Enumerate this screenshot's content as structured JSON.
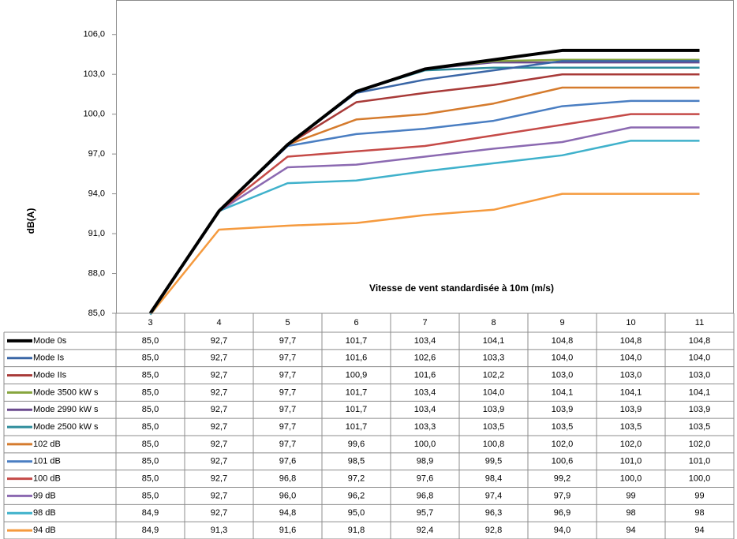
{
  "chart_data": {
    "type": "line",
    "y_label": "dB(A)",
    "x_label": "Vitesse de vent  standardisée à 10m (m/s)",
    "categories": [
      "3",
      "4",
      "5",
      "6",
      "7",
      "8",
      "9",
      "10",
      "11"
    ],
    "ylim": [
      85,
      108.6
    ],
    "yticks": [
      {
        "value": 85,
        "label": "85,0"
      },
      {
        "value": 88,
        "label": "88,0"
      },
      {
        "value": 91,
        "label": "91,0"
      },
      {
        "value": 94,
        "label": "94,0"
      },
      {
        "value": 97,
        "label": "97,0"
      },
      {
        "value": 100,
        "label": "100,0"
      },
      {
        "value": 103,
        "label": "103,0"
      },
      {
        "value": 106,
        "label": "106,0"
      }
    ],
    "grid": false,
    "series": [
      {
        "name": "Mode 0s",
        "color": "#000000",
        "values": [
          85.0,
          92.7,
          97.7,
          101.7,
          103.4,
          104.1,
          104.8,
          104.8,
          104.8
        ],
        "value_labels": [
          "85,0",
          "92,7",
          "97,7",
          "101,7",
          "103,4",
          "104,1",
          "104,8",
          "104,8",
          "104,8"
        ]
      },
      {
        "name": "Mode Is",
        "color": "#3a66a6",
        "values": [
          85.0,
          92.7,
          97.7,
          101.6,
          102.6,
          103.3,
          104.0,
          104.0,
          104.0
        ],
        "value_labels": [
          "85,0",
          "92,7",
          "97,7",
          "101,6",
          "102,6",
          "103,3",
          "104,0",
          "104,0",
          "104,0"
        ]
      },
      {
        "name": "Mode IIs",
        "color": "#a83a38",
        "values": [
          85.0,
          92.7,
          97.7,
          100.9,
          101.6,
          102.2,
          103.0,
          103.0,
          103.0
        ],
        "value_labels": [
          "85,0",
          "92,7",
          "97,7",
          "100,9",
          "101,6",
          "102,2",
          "103,0",
          "103,0",
          "103,0"
        ]
      },
      {
        "name": "Mode 3500 kW s",
        "color": "#86a53d",
        "values": [
          85.0,
          92.7,
          97.7,
          101.7,
          103.4,
          104.0,
          104.1,
          104.1,
          104.1
        ],
        "value_labels": [
          "85,0",
          "92,7",
          "97,7",
          "101,7",
          "103,4",
          "104,0",
          "104,1",
          "104,1",
          "104,1"
        ]
      },
      {
        "name": "Mode 2990 kW s",
        "color": "#6b4b8e",
        "values": [
          85.0,
          92.7,
          97.7,
          101.7,
          103.4,
          103.9,
          103.9,
          103.9,
          103.9
        ],
        "value_labels": [
          "85,0",
          "92,7",
          "97,7",
          "101,7",
          "103,4",
          "103,9",
          "103,9",
          "103,9",
          "103,9"
        ]
      },
      {
        "name": "Mode 2500 kW s",
        "color": "#2f8d9c",
        "values": [
          85.0,
          92.7,
          97.7,
          101.7,
          103.3,
          103.5,
          103.5,
          103.5,
          103.5
        ],
        "value_labels": [
          "85,0",
          "92,7",
          "97,7",
          "101,7",
          "103,3",
          "103,5",
          "103,5",
          "103,5",
          "103,5"
        ]
      },
      {
        "name": "102 dB",
        "color": "#d57b2d",
        "values": [
          85.0,
          92.7,
          97.7,
          99.6,
          100.0,
          100.8,
          102.0,
          102.0,
          102.0
        ],
        "value_labels": [
          "85,0",
          "92,7",
          "97,7",
          "99,6",
          "100,0",
          "100,8",
          "102,0",
          "102,0",
          "102,0"
        ]
      },
      {
        "name": "101 dB",
        "color": "#4a7ec2",
        "values": [
          85.0,
          92.7,
          97.6,
          98.5,
          98.9,
          99.5,
          100.6,
          101.0,
          101.0
        ],
        "value_labels": [
          "85,0",
          "92,7",
          "97,6",
          "98,5",
          "98,9",
          "99,5",
          "100,6",
          "101,0",
          "101,0"
        ]
      },
      {
        "name": "100 dB",
        "color": "#c54a47",
        "values": [
          85.0,
          92.7,
          96.8,
          97.2,
          97.6,
          98.4,
          99.2,
          100.0,
          100.0
        ],
        "value_labels": [
          "85,0",
          "92,7",
          "96,8",
          "97,2",
          "97,6",
          "98,4",
          "99,2",
          "100,0",
          "100,0"
        ]
      },
      {
        "name": "99 dB",
        "color": "#8b69b1",
        "values": [
          85.0,
          92.7,
          96.0,
          96.2,
          96.8,
          97.4,
          97.9,
          99,
          99
        ],
        "value_labels": [
          "85,0",
          "92,7",
          "96,0",
          "96,2",
          "96,8",
          "97,4",
          "97,9",
          "99",
          "99"
        ]
      },
      {
        "name": "98 dB",
        "color": "#3fb1cb",
        "values": [
          84.9,
          92.7,
          94.8,
          95.0,
          95.7,
          96.3,
          96.9,
          98,
          98
        ],
        "value_labels": [
          "84,9",
          "92,7",
          "94,8",
          "95,0",
          "95,7",
          "96,3",
          "96,9",
          "98",
          "98"
        ]
      },
      {
        "name": "94 dB",
        "color": "#f59a3e",
        "values": [
          84.9,
          91.3,
          91.6,
          91.8,
          92.4,
          92.8,
          94.0,
          94,
          94
        ],
        "value_labels": [
          "84,9",
          "91,3",
          "91,6",
          "91,8",
          "92,4",
          "92,8",
          "94,0",
          "94",
          "94"
        ]
      }
    ]
  }
}
